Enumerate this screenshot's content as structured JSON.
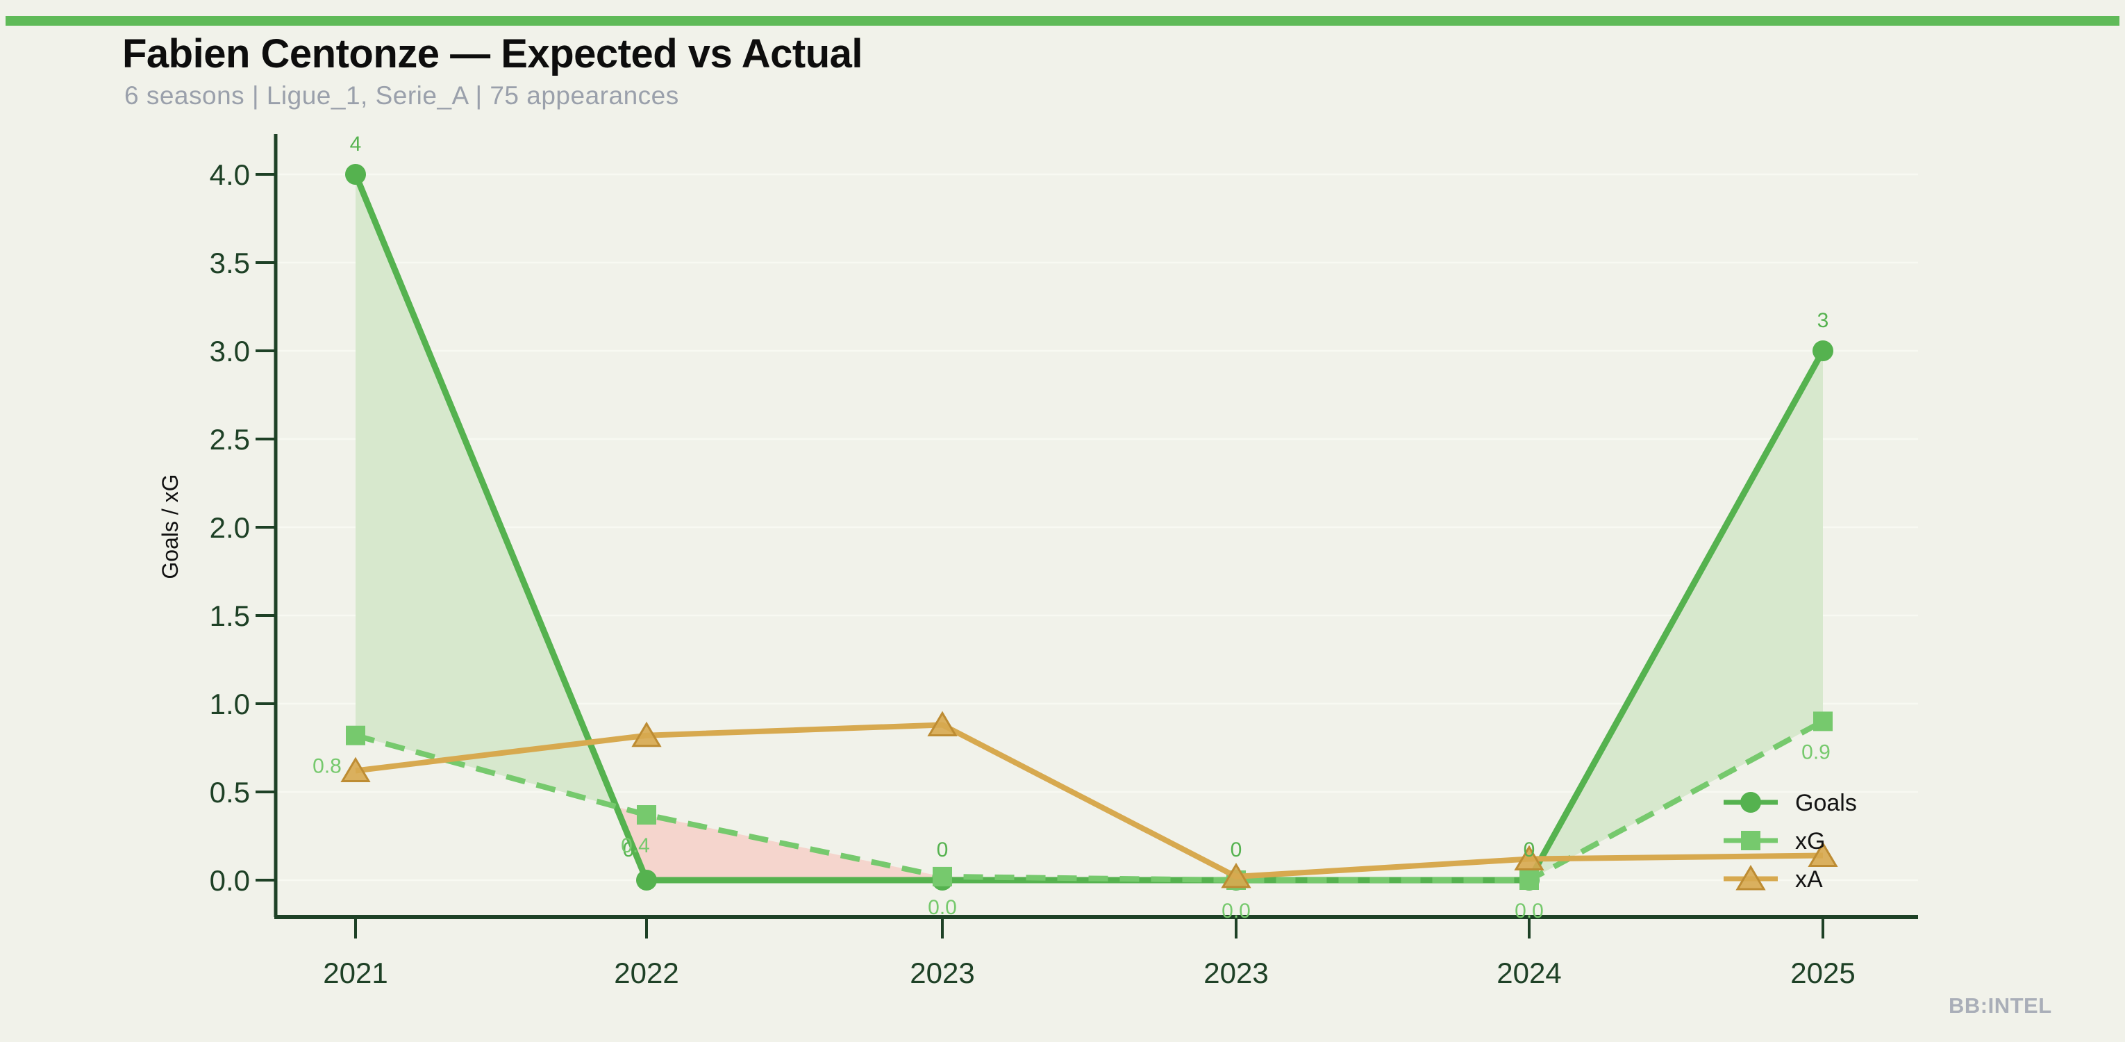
{
  "page": {
    "background": "#f1f2ea"
  },
  "header": {
    "accent_bar_color": "#5fba58",
    "title": "Fabien Centonze — Expected vs Actual",
    "subtitle": "6 seasons | Ligue_1, Serie_A | 75 appearances"
  },
  "watermark": "BB:INTEL",
  "chart_data": {
    "type": "line",
    "title": "Fabien Centonze — Expected vs Actual",
    "categories": [
      "2021",
      "2022",
      "2023",
      "2023",
      "2024",
      "2025"
    ],
    "xlabel": "",
    "ylabel": "Goals / xG",
    "ylim": [
      -0.2,
      4.2
    ],
    "ytick_labels": [
      "0.0",
      "0.5",
      "1.0",
      "1.5",
      "2.0",
      "2.5",
      "3.0",
      "3.5",
      "4.0"
    ],
    "grid": "faint horizontal gridlines",
    "legend_position": "lower right",
    "axis_color": "#1e4126",
    "grid_color": "#f8f9f2",
    "series": [
      {
        "name": "Goals",
        "style": "solid",
        "marker": "circle",
        "color": "#55b24f",
        "values": [
          4,
          0,
          0,
          0,
          0,
          3
        ],
        "point_labels": [
          "4",
          "0",
          "0",
          "0",
          "0",
          "3"
        ]
      },
      {
        "name": "xG",
        "style": "dashed",
        "marker": "square",
        "color": "#76c96d",
        "values": [
          0.82,
          0.37,
          0.02,
          0.0,
          0.0,
          0.9
        ],
        "point_labels": [
          "0.8",
          "0.4",
          "0.0",
          "0.0",
          "0.0",
          "0.9"
        ]
      },
      {
        "name": "xA",
        "style": "solid",
        "marker": "triangle",
        "color": "#d7a94f",
        "marker_edge": "#bd8c33",
        "values": [
          0.62,
          0.82,
          0.88,
          0.02,
          0.12,
          0.14
        ],
        "point_labels": []
      }
    ],
    "fill_between": {
      "upper": "Goals",
      "lower": "xG",
      "positive_color": "#d7e8cd",
      "negative_color": "#f5d5cd"
    }
  }
}
